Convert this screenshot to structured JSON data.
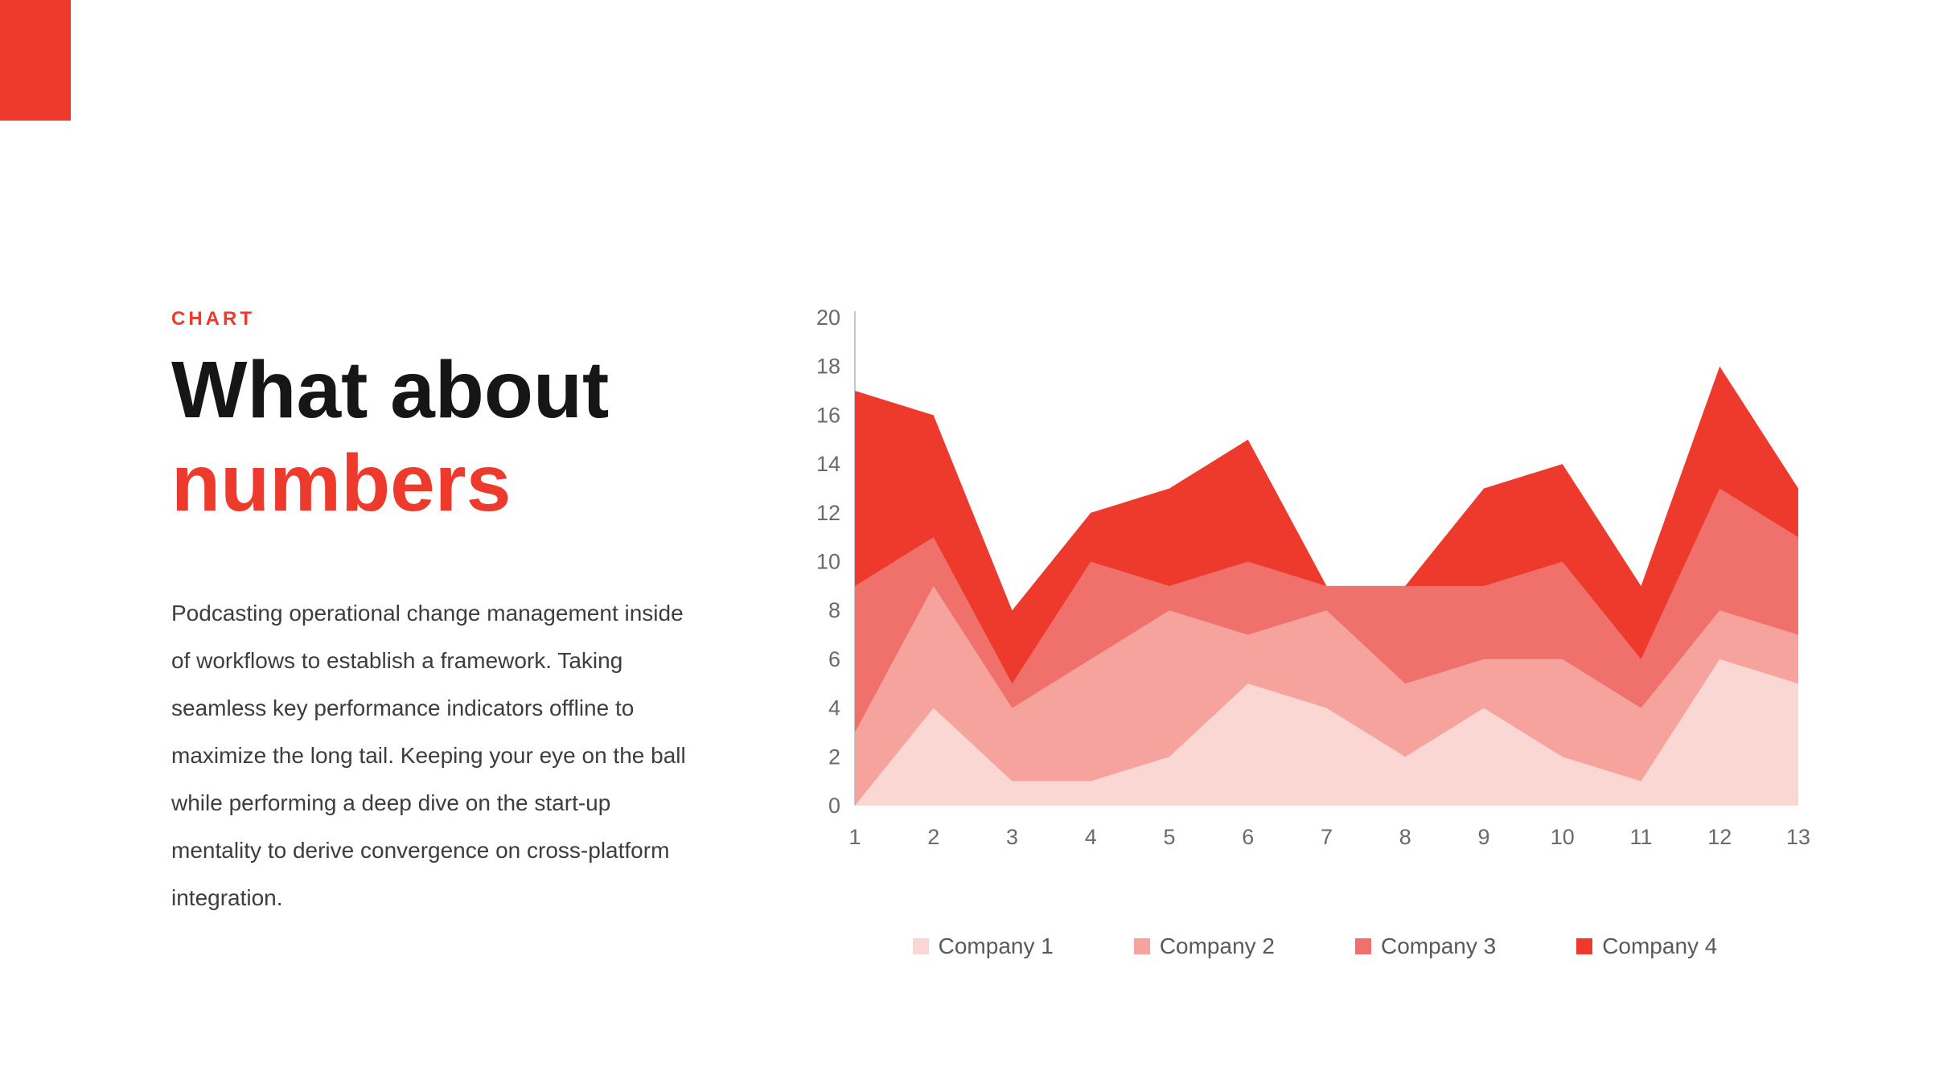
{
  "slide": {
    "eyebrow": "CHART",
    "title_line1": "What about",
    "title_line2": "numbers",
    "body": "Podcasting operational change management inside of workflows to establish a framework. Taking seamless key performance indicators offline to maximize the long tail. Keeping your eye on the ball while performing a deep dive on the start-up mentality to derive convergence on cross-platform integration."
  },
  "colors": {
    "accent": "#ed3a2c",
    "title_text": "#161616",
    "body_text": "#3d3d3d",
    "axis_text": "#6a6a6a",
    "legend_text": "#595959",
    "axis_line": "#c8c8c8"
  },
  "chart_data": {
    "type": "area",
    "overlapping": true,
    "x": [
      1,
      2,
      3,
      4,
      5,
      6,
      7,
      8,
      9,
      10,
      11,
      12,
      13
    ],
    "series": [
      {
        "name": "Company 1",
        "color": "#fbd7d4",
        "values": [
          0,
          4,
          1,
          1,
          2,
          5,
          4,
          2,
          4,
          2,
          1,
          6,
          5
        ]
      },
      {
        "name": "Company 2",
        "color": "#f6a39e",
        "values": [
          3,
          9,
          4,
          6,
          8,
          7,
          8,
          5,
          6,
          6,
          4,
          8,
          7
        ]
      },
      {
        "name": "Company 3",
        "color": "#f0716b",
        "values": [
          9,
          11,
          5,
          10,
          9,
          10,
          9,
          9,
          9,
          10,
          6,
          13,
          11
        ]
      },
      {
        "name": "Company 4",
        "color": "#ed3a2c",
        "values": [
          17,
          16,
          8,
          12,
          13,
          15,
          9,
          9,
          13,
          14,
          9,
          18,
          13
        ]
      }
    ],
    "ylim": [
      0,
      20
    ],
    "yticks": [
      0,
      2,
      4,
      6,
      8,
      10,
      12,
      14,
      16,
      18,
      20
    ],
    "xtick_labels": [
      "1",
      "2",
      "3",
      "4",
      "5",
      "6",
      "7",
      "8",
      "9",
      "10",
      "11",
      "12",
      "13"
    ],
    "legend_entries": [
      "Company 1",
      "Company 2",
      "Company 3",
      "Company 4"
    ],
    "legend_position": "bottom",
    "grid": false,
    "title": ""
  }
}
